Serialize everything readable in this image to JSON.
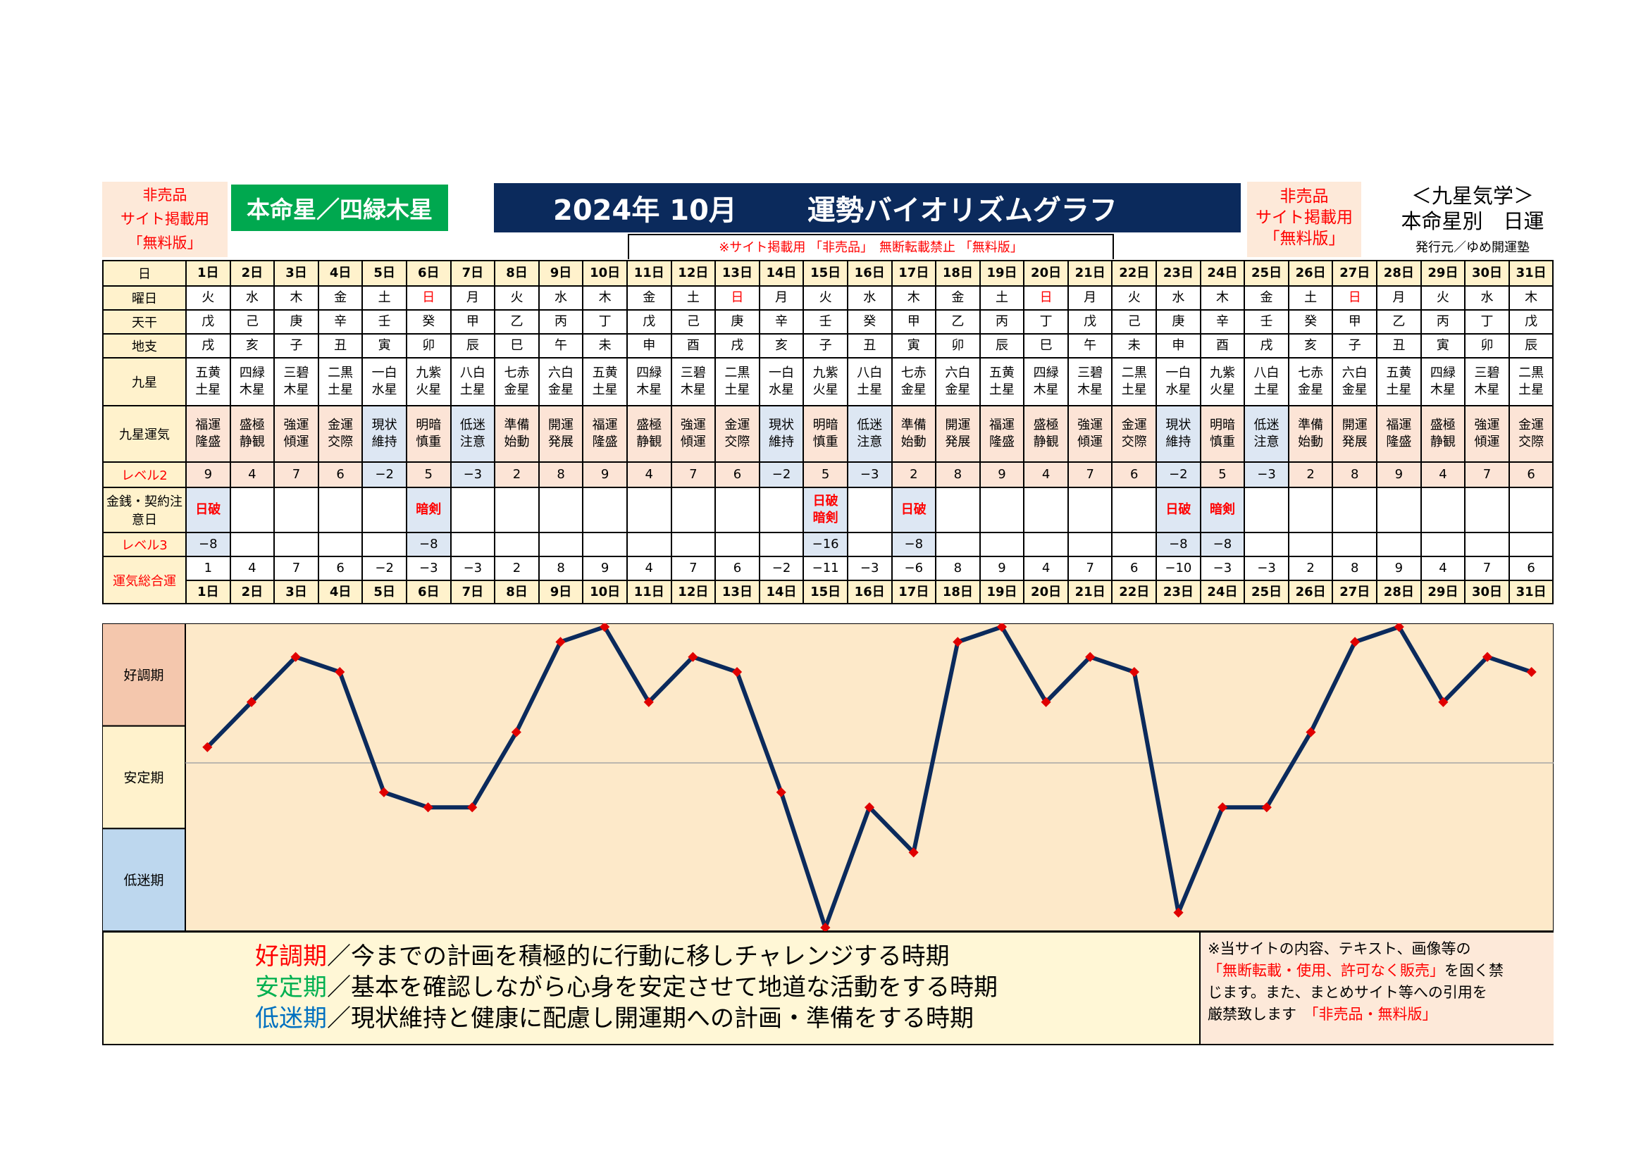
{
  "header": {
    "left_lines": [
      "非売品",
      "サイト掲載用",
      "「無料版」"
    ],
    "honmei": "本命星／四緑木星",
    "title_year_month": "2024年 10月",
    "title_main": "運勢バイオリズムグラフ",
    "notice": "※サイト掲載用 「非売品」　無断転載禁止 「無料版」",
    "right_lines": [
      "非売品",
      "サイト掲載用",
      "「無料版」"
    ],
    "kyusei_lines": [
      "＜九星気学＞",
      "本命星別　日運"
    ],
    "publisher": "発行元／ゆめ開運塾"
  },
  "row_labels": {
    "day": "日",
    "weekday": "曜日",
    "tenkan": "天干",
    "chishi": "地支",
    "kyusei": "九星",
    "unki": "九星運気",
    "level2": "レベル2",
    "kinsen": "金銭・契約注意日",
    "level3": "レベル3",
    "total": "運気総合運"
  },
  "days": [
    "1日",
    "2日",
    "3日",
    "4日",
    "5日",
    "6日",
    "7日",
    "8日",
    "9日",
    "10日",
    "11日",
    "12日",
    "13日",
    "14日",
    "15日",
    "16日",
    "17日",
    "18日",
    "19日",
    "20日",
    "21日",
    "22日",
    "23日",
    "24日",
    "25日",
    "26日",
    "27日",
    "28日",
    "29日",
    "30日",
    "31日"
  ],
  "weekdays": [
    "火",
    "水",
    "木",
    "金",
    "土",
    "日",
    "月",
    "火",
    "水",
    "木",
    "金",
    "土",
    "日",
    "月",
    "火",
    "水",
    "木",
    "金",
    "土",
    "日",
    "月",
    "火",
    "水",
    "木",
    "金",
    "土",
    "日",
    "月",
    "火",
    "水",
    "木"
  ],
  "tenkan": [
    "戊",
    "己",
    "庚",
    "辛",
    "壬",
    "癸",
    "甲",
    "乙",
    "丙",
    "丁",
    "戊",
    "己",
    "庚",
    "辛",
    "壬",
    "癸",
    "甲",
    "乙",
    "丙",
    "丁",
    "戊",
    "己",
    "庚",
    "辛",
    "壬",
    "癸",
    "甲",
    "乙",
    "丙",
    "丁",
    "戊"
  ],
  "chishi": [
    "戌",
    "亥",
    "子",
    "丑",
    "寅",
    "卯",
    "辰",
    "巳",
    "午",
    "未",
    "申",
    "酉",
    "戌",
    "亥",
    "子",
    "丑",
    "寅",
    "卯",
    "辰",
    "巳",
    "午",
    "未",
    "申",
    "酉",
    "戌",
    "亥",
    "子",
    "丑",
    "寅",
    "卯",
    "辰"
  ],
  "kyusei": [
    "五黄\n土星",
    "四緑\n木星",
    "三碧\n木星",
    "二黒\n土星",
    "一白\n水星",
    "九紫\n火星",
    "八白\n土星",
    "七赤\n金星",
    "六白\n金星",
    "五黄\n土星",
    "四緑\n木星",
    "三碧\n木星",
    "二黒\n土星",
    "一白\n水星",
    "九紫\n火星",
    "八白\n土星",
    "七赤\n金星",
    "六白\n金星",
    "五黄\n土星",
    "四緑\n木星",
    "三碧\n木星",
    "二黒\n土星",
    "一白\n水星",
    "九紫\n火星",
    "八白\n土星",
    "七赤\n金星",
    "六白\n金星",
    "五黄\n土星",
    "四緑\n木星",
    "三碧\n木星",
    "二黒\n土星"
  ],
  "unki": [
    "福運\n隆盛",
    "盛極\n静観",
    "強運\n傾運",
    "金運\n交際",
    "現状\n維持",
    "明暗\n慎重",
    "低迷\n注意",
    "準備\n始動",
    "開運\n発展",
    "福運\n隆盛",
    "盛極\n静観",
    "強運\n傾運",
    "金運\n交際",
    "現状\n維持",
    "明暗\n慎重",
    "低迷\n注意",
    "準備\n始動",
    "開運\n発展",
    "福運\n隆盛",
    "盛極\n静観",
    "強運\n傾運",
    "金運\n交際",
    "現状\n維持",
    "明暗\n慎重",
    "低迷\n注意",
    "準備\n始動",
    "開運\n発展",
    "福運\n隆盛",
    "盛極\n静観",
    "強運\n傾運",
    "金運\n交際"
  ],
  "level2": [
    "9",
    "4",
    "7",
    "6",
    "−2",
    "5",
    "−3",
    "2",
    "8",
    "9",
    "4",
    "7",
    "6",
    "−2",
    "5",
    "−3",
    "2",
    "8",
    "9",
    "4",
    "7",
    "6",
    "−2",
    "5",
    "−3",
    "2",
    "8",
    "9",
    "4",
    "7",
    "6"
  ],
  "kinsen": [
    "日破",
    "",
    "",
    "",
    "",
    "暗剣",
    "",
    "",
    "",
    "",
    "",
    "",
    "",
    "",
    "日破\n暗剣",
    "",
    "日破",
    "",
    "",
    "",
    "",
    "",
    "日破",
    "暗剣",
    "",
    "",
    "",
    "",
    "",
    "",
    ""
  ],
  "level3": [
    "−8",
    "",
    "",
    "",
    "",
    "−8",
    "",
    "",
    "",
    "",
    "",
    "",
    "",
    "",
    "−16",
    "",
    "−8",
    "",
    "",
    "",
    "",
    "",
    "−8",
    "−8",
    "",
    "",
    "",
    "",
    "",
    "",
    ""
  ],
  "total": [
    "1",
    "4",
    "7",
    "6",
    "−2",
    "−3",
    "−3",
    "2",
    "8",
    "9",
    "4",
    "7",
    "6",
    "−2",
    "−11",
    "−3",
    "−6",
    "8",
    "9",
    "4",
    "7",
    "6",
    "−10",
    "−3",
    "−3",
    "2",
    "8",
    "9",
    "4",
    "7",
    "6"
  ],
  "colors": {
    "red": "#ff0000",
    "pink": "#fce4d6",
    "blue": "#dde7f3",
    "label": "#fff2cc",
    "good_band": "#f4c7ad",
    "stable_band": "#fff2cc",
    "low_band": "#bdd7ee",
    "line": "#0b2a5c",
    "marker": "#e00000"
  },
  "chart_data": {
    "type": "line",
    "categories": [
      "1日",
      "2日",
      "3日",
      "4日",
      "5日",
      "6日",
      "7日",
      "8日",
      "9日",
      "10日",
      "11日",
      "12日",
      "13日",
      "14日",
      "15日",
      "16日",
      "17日",
      "18日",
      "19日",
      "20日",
      "21日",
      "22日",
      "23日",
      "24日",
      "25日",
      "26日",
      "27日",
      "28日",
      "29日",
      "30日",
      "31日"
    ],
    "values": [
      1,
      4,
      7,
      6,
      -2,
      -3,
      -3,
      2,
      8,
      9,
      4,
      7,
      6,
      -2,
      -11,
      -3,
      -6,
      8,
      9,
      4,
      7,
      6,
      -10,
      -3,
      -3,
      2,
      8,
      9,
      4,
      7,
      6
    ],
    "ylim": [
      -11,
      9
    ],
    "bands": [
      "好調期",
      "安定期",
      "低迷期"
    ],
    "grid": false
  },
  "legend": [
    {
      "term": "好調期",
      "text": "／今までの計画を積極的に行動に移しチャレンジする時期",
      "color": "#ff0000"
    },
    {
      "term": "安定期",
      "text": "／基本を確認しながら心身を安定させて地道な活動をする時期",
      "color": "#00b050"
    },
    {
      "term": "低迷期",
      "text": "／現状維持と健康に配慮し開運期への計画・準備をする時期",
      "color": "#0070c0"
    }
  ],
  "right_note": {
    "l1": "※当サイトの内容、テキスト、画像等の",
    "l2_red": "「無断転載・使用、許可なく販売」",
    "l2_rest": "を固く禁",
    "l3": "じます。また、まとめサイト等への引用を",
    "l4": "厳禁致します",
    "l4_red": "「非売品・無料版」"
  }
}
